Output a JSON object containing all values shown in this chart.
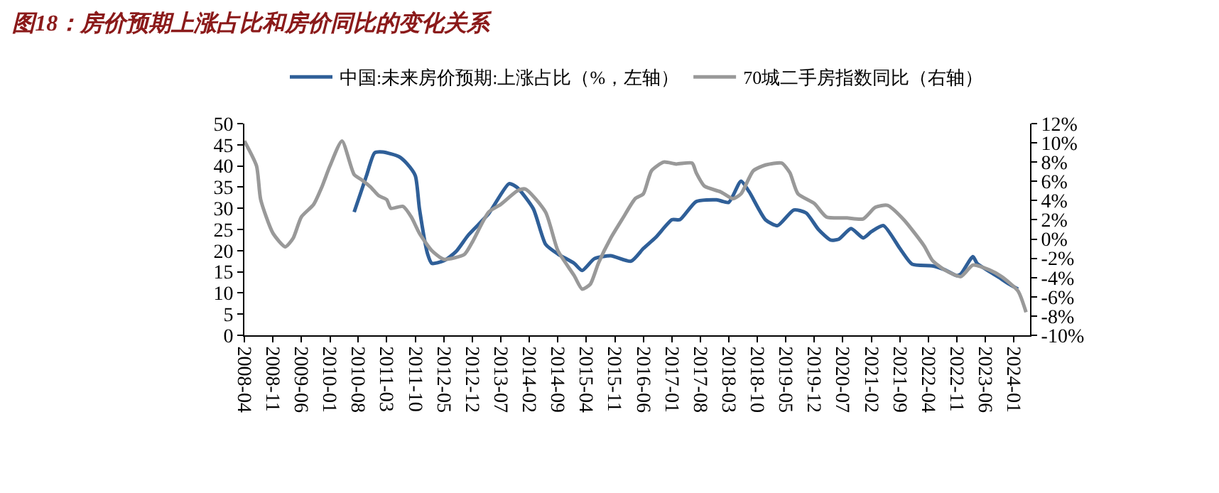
{
  "chart_data": {
    "type": "line",
    "title": "图18：房价预期上涨占比和房价同比的变化关系",
    "legend": "top",
    "marker": "none",
    "line_style": "solid",
    "xlim": [
      "2008-04",
      "2024-05"
    ],
    "xticks": [
      "2008-04",
      "2008-11",
      "2009-06",
      "2010-01",
      "2010-08",
      "2011-03",
      "2011-10",
      "2012-05",
      "2012-12",
      "2013-07",
      "2014-02",
      "2014-09",
      "2015-04",
      "2015-11",
      "2016-06",
      "2017-01",
      "2017-08",
      "2018-03",
      "2018-10",
      "2019-05",
      "2019-12",
      "2020-07",
      "2021-02",
      "2021-09",
      "2022-04",
      "2022-11",
      "2023-06",
      "2024-01"
    ],
    "ylim": [
      0,
      50
    ],
    "yticks": [
      0,
      5,
      10,
      15,
      20,
      25,
      30,
      35,
      40,
      45,
      50
    ],
    "y2lim": [
      -10,
      12
    ],
    "y2ticks": [
      {
        "value": -10,
        "label": "-10%"
      },
      {
        "value": -8,
        "label": "-8%"
      },
      {
        "value": -6,
        "label": "-6%"
      },
      {
        "value": -4,
        "label": "-4%"
      },
      {
        "value": -2,
        "label": "-2%"
      },
      {
        "value": 0,
        "label": "0%"
      },
      {
        "value": 2,
        "label": "2%"
      },
      {
        "value": 4,
        "label": "4%"
      },
      {
        "value": 6,
        "label": "6%"
      },
      {
        "value": 8,
        "label": "8%"
      },
      {
        "value": 10,
        "label": "10%"
      },
      {
        "value": 12,
        "label": "12%"
      }
    ],
    "series": [
      {
        "name": "中国:未来房价预期:上涨占比（%，左轴）",
        "color": "#2f5f98",
        "x": [
          "2010-07",
          "2010-10",
          "2010-12",
          "2011-02",
          "2011-06",
          "2011-08",
          "2011-10",
          "2011-11",
          "2012-01",
          "2012-02",
          "2012-05",
          "2012-08",
          "2012-11",
          "2013-04",
          "2013-09",
          "2013-11",
          "2014-03",
          "2014-06",
          "2014-09",
          "2015-01",
          "2015-03",
          "2015-06",
          "2015-10",
          "2016-03",
          "2016-06",
          "2016-09",
          "2017-01",
          "2017-03",
          "2017-07",
          "2017-12",
          "2018-03",
          "2018-06",
          "2018-08",
          "2018-12",
          "2019-03",
          "2019-07",
          "2019-10",
          "2020-01",
          "2020-04",
          "2020-06",
          "2020-09",
          "2020-12",
          "2021-02",
          "2021-05",
          "2021-09",
          "2021-12",
          "2022-05",
          "2022-08",
          "2022-11",
          "2022-12",
          "2023-03",
          "2023-04",
          "2023-09",
          "2023-12",
          "2024-02"
        ],
        "values": [
          29.1,
          37.7,
          43.1,
          43.3,
          42.2,
          40.5,
          37.7,
          29.9,
          19.2,
          17.0,
          17.6,
          19.8,
          23.7,
          28.7,
          35.8,
          34.9,
          29.9,
          21.5,
          19.2,
          17.0,
          15.3,
          18.1,
          18.8,
          17.5,
          20.5,
          23.1,
          27.3,
          27.3,
          31.6,
          32.0,
          31.4,
          36.4,
          33.9,
          27.3,
          25.9,
          29.6,
          28.9,
          25.0,
          22.5,
          22.7,
          25.2,
          23.0,
          24.5,
          25.9,
          20.5,
          16.8,
          16.4,
          15.5,
          14.1,
          14.5,
          18.6,
          17.0,
          13.9,
          12.0,
          10.9
        ]
      },
      {
        "name": "70城二手房指数同比（右轴）",
        "color": "#999999",
        "axis": "y2",
        "x": [
          "2008-04",
          "2008-07",
          "2008-08",
          "2008-11",
          "2009-02",
          "2009-04",
          "2009-06",
          "2009-09",
          "2009-11",
          "2010-01",
          "2010-04",
          "2010-07",
          "2010-09",
          "2010-11",
          "2011-01",
          "2011-03",
          "2011-04",
          "2011-07",
          "2011-09",
          "2011-11",
          "2012-02",
          "2012-05",
          "2012-10",
          "2012-12",
          "2013-04",
          "2013-07",
          "2013-11",
          "2014-01",
          "2014-06",
          "2014-09",
          "2015-01",
          "2015-03",
          "2015-05",
          "2015-07",
          "2015-10",
          "2016-01",
          "2016-04",
          "2016-06",
          "2016-08",
          "2016-11",
          "2017-02",
          "2017-06",
          "2017-07",
          "2017-09",
          "2018-01",
          "2018-04",
          "2018-06",
          "2018-09",
          "2018-12",
          "2019-04",
          "2019-06",
          "2019-08",
          "2019-12",
          "2020-03",
          "2020-08",
          "2020-12",
          "2021-03",
          "2021-06",
          "2021-10",
          "2022-03",
          "2022-05",
          "2022-08",
          "2022-12",
          "2023-03",
          "2023-07",
          "2023-10",
          "2024-02",
          "2024-04"
        ],
        "values": [
          10.2,
          7.6,
          4.1,
          0.6,
          -0.8,
          0.1,
          2.3,
          3.6,
          5.4,
          7.6,
          10.2,
          6.7,
          6.1,
          5.4,
          4.5,
          4.1,
          3.2,
          3.4,
          2.3,
          0.6,
          -1.2,
          -2.1,
          -1.6,
          -0.3,
          2.8,
          3.6,
          5.0,
          5.2,
          2.8,
          -1.2,
          -3.8,
          -5.2,
          -4.7,
          -2.5,
          0.1,
          2.2,
          4.2,
          4.7,
          7.1,
          8.0,
          7.8,
          7.9,
          6.9,
          5.5,
          4.9,
          4.2,
          4.7,
          7.1,
          7.7,
          7.9,
          6.9,
          4.7,
          3.7,
          2.3,
          2.2,
          2.1,
          3.3,
          3.5,
          2.0,
          -0.7,
          -2.2,
          -3.2,
          -3.9,
          -2.7,
          -3.2,
          -3.9,
          -5.4,
          -7.6
        ]
      }
    ]
  }
}
